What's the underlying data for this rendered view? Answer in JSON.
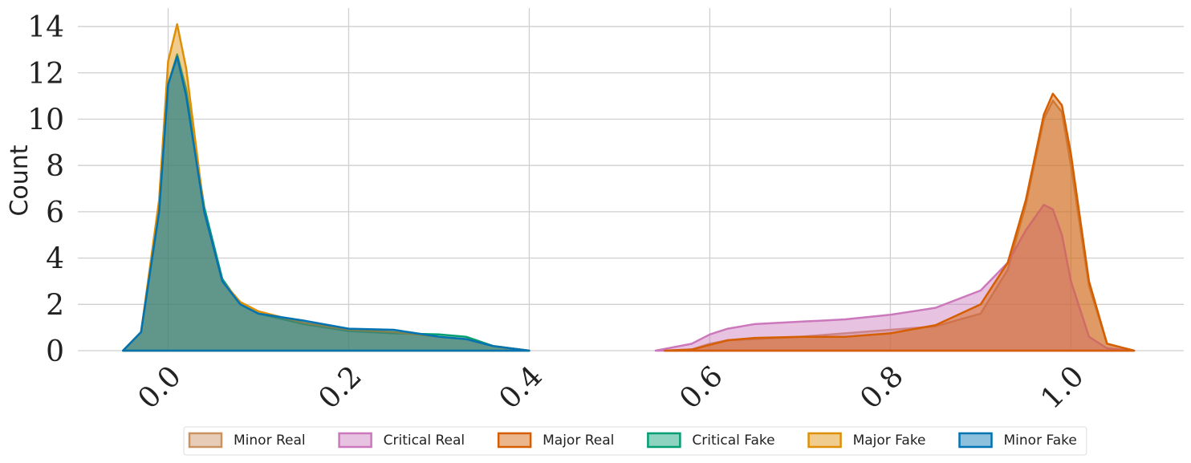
{
  "chart_data": {
    "type": "area",
    "y_label": "Count",
    "xlim": [
      -0.1,
      1.125
    ],
    "ylim": [
      0,
      14.8
    ],
    "xticks": [
      {
        "value": 0,
        "label": "0.0"
      },
      {
        "value": 0.2,
        "label": "0.2"
      },
      {
        "value": 0.4,
        "label": "0.4"
      },
      {
        "value": 0.6,
        "label": "0.6"
      },
      {
        "value": 0.8,
        "label": "0.8"
      },
      {
        "value": 1,
        "label": "1.0"
      }
    ],
    "yticks": [
      0,
      2,
      4,
      6,
      8,
      10,
      12,
      14
    ],
    "grid": true,
    "legend": "bottom",
    "series": [
      {
        "name": "Minor Real",
        "color": "#ca9161",
        "x": [
          0.55,
          0.58,
          0.6,
          0.62,
          0.65,
          0.7,
          0.75,
          0.8,
          0.85,
          0.9,
          0.93,
          0.95,
          0.97,
          0.98,
          0.99,
          1.0,
          1.02,
          1.04,
          1.07
        ],
        "values": [
          0,
          0.05,
          0.3,
          0.45,
          0.5,
          0.6,
          0.75,
          0.9,
          1.05,
          1.6,
          3.5,
          6.3,
          10,
          10.8,
          10.3,
          8,
          2.8,
          0.3,
          0
        ]
      },
      {
        "name": "Critical Real",
        "color": "#cc78bc",
        "x": [
          0.54,
          0.58,
          0.6,
          0.62,
          0.65,
          0.7,
          0.75,
          0.8,
          0.85,
          0.9,
          0.93,
          0.95,
          0.97,
          0.98,
          0.99,
          1.0,
          1.02,
          1.04,
          1.07
        ],
        "values": [
          0,
          0.3,
          0.7,
          0.95,
          1.15,
          1.25,
          1.35,
          1.55,
          1.85,
          2.6,
          3.8,
          5.2,
          6.3,
          6.1,
          5,
          3,
          0.6,
          0.1,
          0
        ]
      },
      {
        "name": "Major Real",
        "color": "#d55e00",
        "x": [
          0.55,
          0.58,
          0.6,
          0.62,
          0.65,
          0.7,
          0.75,
          0.8,
          0.85,
          0.9,
          0.93,
          0.95,
          0.97,
          0.98,
          0.99,
          1.0,
          1.02,
          1.04,
          1.07
        ],
        "values": [
          0,
          0.05,
          0.25,
          0.45,
          0.55,
          0.6,
          0.6,
          0.75,
          1.1,
          2,
          3.8,
          6.5,
          10.2,
          11.1,
          10.6,
          8.5,
          3,
          0.3,
          0
        ]
      },
      {
        "name": "Critical Fake",
        "color": "#029e73",
        "x": [
          -0.05,
          -0.03,
          -0.01,
          0,
          0.01,
          0.02,
          0.04,
          0.06,
          0.08,
          0.1,
          0.15,
          0.2,
          0.25,
          0.3,
          0.33,
          0.36,
          0.4
        ],
        "values": [
          0,
          0.8,
          6,
          11.5,
          12.8,
          11.3,
          6.2,
          3.1,
          2,
          1.6,
          1.15,
          0.85,
          0.75,
          0.7,
          0.6,
          0.2,
          0
        ]
      },
      {
        "name": "Major Fake",
        "color": "#de8f05",
        "x": [
          -0.05,
          -0.03,
          -0.01,
          0,
          0.01,
          0.02,
          0.04,
          0.06,
          0.08,
          0.1,
          0.15,
          0.2,
          0.25,
          0.3,
          0.33,
          0.36,
          0.4
        ],
        "values": [
          0,
          0.8,
          6.5,
          12.5,
          14.1,
          12.2,
          6,
          3,
          2.1,
          1.7,
          1.2,
          0.9,
          0.8,
          0.6,
          0.5,
          0.2,
          0
        ]
      },
      {
        "name": "Minor Fake",
        "color": "#0173b2",
        "x": [
          -0.05,
          -0.03,
          -0.01,
          0,
          0.01,
          0.02,
          0.04,
          0.06,
          0.08,
          0.1,
          0.15,
          0.2,
          0.25,
          0.3,
          0.33,
          0.36,
          0.4
        ],
        "values": [
          0,
          0.8,
          6,
          11.5,
          12.7,
          11,
          6,
          3,
          2,
          1.6,
          1.3,
          0.95,
          0.9,
          0.6,
          0.5,
          0.2,
          0
        ]
      }
    ]
  }
}
